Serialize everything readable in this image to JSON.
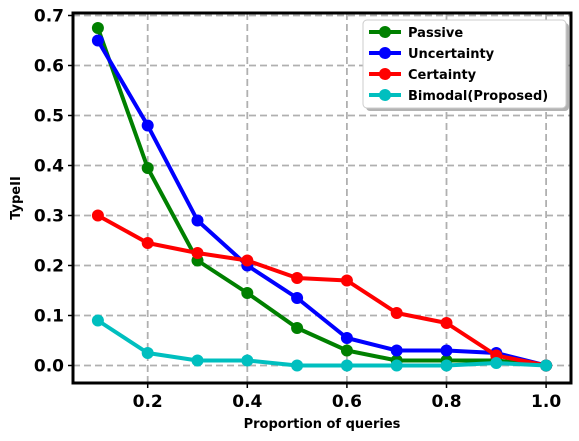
{
  "chart_data": {
    "type": "line",
    "xlabel": "Proportion of queries",
    "ylabel": "TypeII",
    "xlim": [
      0.05,
      1.05
    ],
    "ylim": [
      -0.035,
      0.705
    ],
    "xticks": [
      0.2,
      0.4,
      0.6,
      0.8,
      1.0
    ],
    "xtick_labels": [
      "0.2",
      "0.4",
      "0.6",
      "0.8",
      "1.0"
    ],
    "yticks": [
      0.0,
      0.1,
      0.2,
      0.3,
      0.4,
      0.5,
      0.6,
      0.7
    ],
    "ytick_labels": [
      "0.0",
      "0.1",
      "0.2",
      "0.3",
      "0.4",
      "0.5",
      "0.6",
      "0.7"
    ],
    "grid": true,
    "legend_position": "top-right",
    "x": [
      0.1,
      0.2,
      0.3,
      0.4,
      0.5,
      0.6,
      0.7,
      0.8,
      0.9,
      1.0
    ],
    "series": [
      {
        "name": "Passive",
        "color": "#008000",
        "values": [
          0.675,
          0.395,
          0.21,
          0.145,
          0.075,
          0.03,
          0.01,
          0.01,
          0.01,
          0.0
        ]
      },
      {
        "name": "Uncertainty",
        "color": "#0000ff",
        "values": [
          0.65,
          0.48,
          0.29,
          0.2,
          0.135,
          0.055,
          0.03,
          0.03,
          0.025,
          0.0
        ]
      },
      {
        "name": "Certainty",
        "color": "#ff0000",
        "values": [
          0.3,
          0.245,
          0.225,
          0.21,
          0.175,
          0.17,
          0.105,
          0.085,
          0.02,
          0.0
        ]
      },
      {
        "name": "Bimodal(Proposed)",
        "color": "#00bfbf",
        "values": [
          0.09,
          0.025,
          0.01,
          0.01,
          0.0,
          0.0,
          0.0,
          0.0,
          0.005,
          0.0
        ]
      }
    ]
  }
}
